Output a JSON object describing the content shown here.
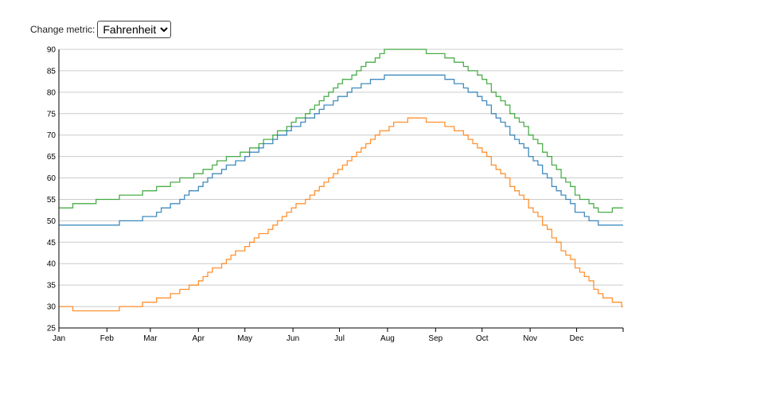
{
  "controls": {
    "label": "Change metric:",
    "selected": "Fahrenheit"
  },
  "chart_data": {
    "type": "line",
    "title": "",
    "xlabel": "",
    "ylabel": "",
    "ylim": [
      25,
      90
    ],
    "y_ticks": [
      25,
      30,
      35,
      40,
      45,
      50,
      55,
      60,
      65,
      70,
      75,
      80,
      85,
      90
    ],
    "x_tick_labels": [
      "Jan",
      "Feb",
      "Mar",
      "Apr",
      "May",
      "Jun",
      "Jul",
      "Aug",
      "Sep",
      "Oct",
      "Nov",
      "Dec"
    ],
    "grid": "horizontal",
    "legend": "none",
    "step": true,
    "x": [
      1,
      15,
      32,
      46,
      60,
      74,
      91,
      105,
      121,
      135,
      152,
      166,
      182,
      196,
      213,
      227,
      244,
      258,
      274,
      288,
      305,
      319,
      335,
      349,
      365
    ],
    "series": [
      {
        "color": "#2ca02c",
        "values": [
          53,
          54,
          55,
          56,
          57,
          59,
          61,
          64,
          66,
          69,
          73,
          77,
          82,
          86,
          90,
          90,
          89,
          87,
          83,
          77,
          70,
          63,
          56,
          52,
          53
        ]
      },
      {
        "color": "#1f77b4",
        "values": [
          49,
          49,
          49,
          50,
          51,
          54,
          58,
          62,
          65,
          68,
          72,
          75,
          79,
          82,
          84,
          84,
          84,
          82,
          78,
          72,
          65,
          58,
          52,
          49,
          49
        ]
      },
      {
        "color": "#ff7f0e",
        "values": [
          30,
          29,
          29,
          30,
          31,
          33,
          36,
          40,
          44,
          48,
          53,
          57,
          62,
          67,
          72,
          74,
          73,
          71,
          66,
          60,
          53,
          46,
          39,
          33,
          30
        ]
      }
    ]
  }
}
